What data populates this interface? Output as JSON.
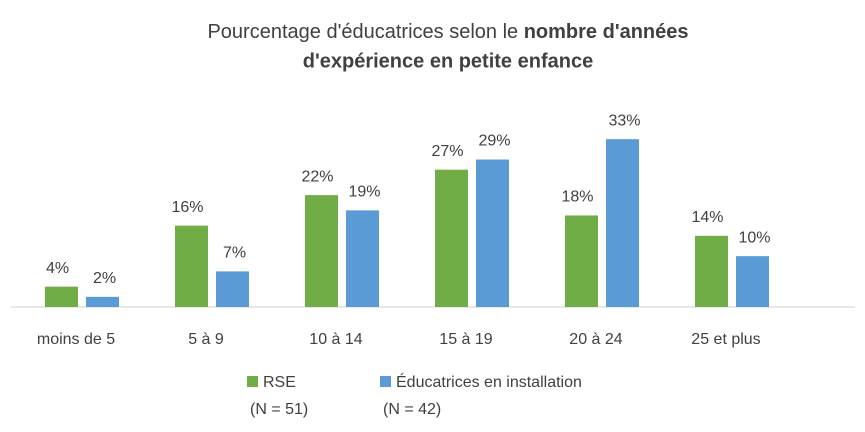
{
  "chart_data": {
    "type": "bar",
    "title": {
      "regular": "Pourcentage d'éducatrices selon le",
      "bold_line1": "nombre d'années",
      "bold_line2": "d'expérience en petite enfance"
    },
    "categories": [
      "moins de 5",
      "5 à 9",
      "10 à 14",
      "15 à 19",
      "20 à 24",
      "25 et plus"
    ],
    "series": [
      {
        "name": "RSE",
        "note": "(N = 51)",
        "color": "#70ad47",
        "values": [
          4,
          16,
          22,
          27,
          18,
          14
        ],
        "value_labels": [
          "4%",
          "16%",
          "22%",
          "27%",
          "18%",
          "14%"
        ]
      },
      {
        "name": "Éducatrices en installation",
        "note": "(N = 42)",
        "color": "#5b9bd5",
        "values": [
          2,
          7,
          19,
          29,
          33,
          10
        ],
        "value_labels": [
          "2%",
          "7%",
          "19%",
          "29%",
          "33%",
          "10%"
        ]
      }
    ],
    "ylim": [
      0,
      35
    ],
    "legend": "bottom"
  }
}
